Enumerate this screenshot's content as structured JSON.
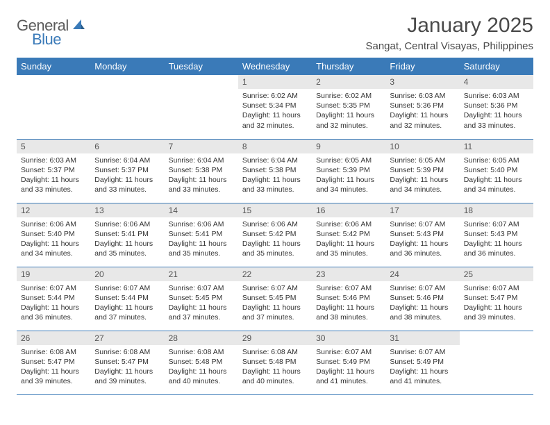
{
  "logo": {
    "general": "General",
    "blue": "Blue"
  },
  "title": "January 2025",
  "location": "Sangat, Central Visayas, Philippines",
  "colors": {
    "header_bg": "#3a7ab8",
    "header_text": "#ffffff",
    "daynum_bg": "#e8e8e8",
    "body_text": "#333333",
    "rule": "#3a7ab8",
    "logo_gray": "#5a5a5a",
    "logo_blue": "#3a7ab8"
  },
  "weekdays": [
    "Sunday",
    "Monday",
    "Tuesday",
    "Wednesday",
    "Thursday",
    "Friday",
    "Saturday"
  ],
  "weeks": [
    [
      null,
      null,
      null,
      {
        "n": "1",
        "sr": "6:02 AM",
        "ss": "5:34 PM",
        "dl": "11 hours and 32 minutes."
      },
      {
        "n": "2",
        "sr": "6:02 AM",
        "ss": "5:35 PM",
        "dl": "11 hours and 32 minutes."
      },
      {
        "n": "3",
        "sr": "6:03 AM",
        "ss": "5:36 PM",
        "dl": "11 hours and 32 minutes."
      },
      {
        "n": "4",
        "sr": "6:03 AM",
        "ss": "5:36 PM",
        "dl": "11 hours and 33 minutes."
      }
    ],
    [
      {
        "n": "5",
        "sr": "6:03 AM",
        "ss": "5:37 PM",
        "dl": "11 hours and 33 minutes."
      },
      {
        "n": "6",
        "sr": "6:04 AM",
        "ss": "5:37 PM",
        "dl": "11 hours and 33 minutes."
      },
      {
        "n": "7",
        "sr": "6:04 AM",
        "ss": "5:38 PM",
        "dl": "11 hours and 33 minutes."
      },
      {
        "n": "8",
        "sr": "6:04 AM",
        "ss": "5:38 PM",
        "dl": "11 hours and 33 minutes."
      },
      {
        "n": "9",
        "sr": "6:05 AM",
        "ss": "5:39 PM",
        "dl": "11 hours and 34 minutes."
      },
      {
        "n": "10",
        "sr": "6:05 AM",
        "ss": "5:39 PM",
        "dl": "11 hours and 34 minutes."
      },
      {
        "n": "11",
        "sr": "6:05 AM",
        "ss": "5:40 PM",
        "dl": "11 hours and 34 minutes."
      }
    ],
    [
      {
        "n": "12",
        "sr": "6:06 AM",
        "ss": "5:40 PM",
        "dl": "11 hours and 34 minutes."
      },
      {
        "n": "13",
        "sr": "6:06 AM",
        "ss": "5:41 PM",
        "dl": "11 hours and 35 minutes."
      },
      {
        "n": "14",
        "sr": "6:06 AM",
        "ss": "5:41 PM",
        "dl": "11 hours and 35 minutes."
      },
      {
        "n": "15",
        "sr": "6:06 AM",
        "ss": "5:42 PM",
        "dl": "11 hours and 35 minutes."
      },
      {
        "n": "16",
        "sr": "6:06 AM",
        "ss": "5:42 PM",
        "dl": "11 hours and 35 minutes."
      },
      {
        "n": "17",
        "sr": "6:07 AM",
        "ss": "5:43 PM",
        "dl": "11 hours and 36 minutes."
      },
      {
        "n": "18",
        "sr": "6:07 AM",
        "ss": "5:43 PM",
        "dl": "11 hours and 36 minutes."
      }
    ],
    [
      {
        "n": "19",
        "sr": "6:07 AM",
        "ss": "5:44 PM",
        "dl": "11 hours and 36 minutes."
      },
      {
        "n": "20",
        "sr": "6:07 AM",
        "ss": "5:44 PM",
        "dl": "11 hours and 37 minutes."
      },
      {
        "n": "21",
        "sr": "6:07 AM",
        "ss": "5:45 PM",
        "dl": "11 hours and 37 minutes."
      },
      {
        "n": "22",
        "sr": "6:07 AM",
        "ss": "5:45 PM",
        "dl": "11 hours and 37 minutes."
      },
      {
        "n": "23",
        "sr": "6:07 AM",
        "ss": "5:46 PM",
        "dl": "11 hours and 38 minutes."
      },
      {
        "n": "24",
        "sr": "6:07 AM",
        "ss": "5:46 PM",
        "dl": "11 hours and 38 minutes."
      },
      {
        "n": "25",
        "sr": "6:07 AM",
        "ss": "5:47 PM",
        "dl": "11 hours and 39 minutes."
      }
    ],
    [
      {
        "n": "26",
        "sr": "6:08 AM",
        "ss": "5:47 PM",
        "dl": "11 hours and 39 minutes."
      },
      {
        "n": "27",
        "sr": "6:08 AM",
        "ss": "5:47 PM",
        "dl": "11 hours and 39 minutes."
      },
      {
        "n": "28",
        "sr": "6:08 AM",
        "ss": "5:48 PM",
        "dl": "11 hours and 40 minutes."
      },
      {
        "n": "29",
        "sr": "6:08 AM",
        "ss": "5:48 PM",
        "dl": "11 hours and 40 minutes."
      },
      {
        "n": "30",
        "sr": "6:07 AM",
        "ss": "5:49 PM",
        "dl": "11 hours and 41 minutes."
      },
      {
        "n": "31",
        "sr": "6:07 AM",
        "ss": "5:49 PM",
        "dl": "11 hours and 41 minutes."
      },
      null
    ]
  ],
  "labels": {
    "sunrise": "Sunrise:",
    "sunset": "Sunset:",
    "daylight": "Daylight:"
  }
}
